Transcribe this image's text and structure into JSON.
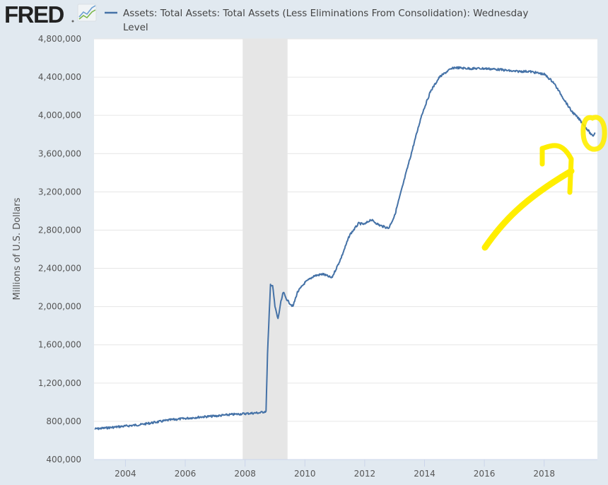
{
  "header": {
    "logo_text": "FRED",
    "logo_icon": "line-chart-icon",
    "legend_line1": "Assets: Total Assets: Total Assets (Less Eliminations From Consolidation): Wednesday",
    "legend_line2": "Level"
  },
  "colors": {
    "series": "#4572a7",
    "background": "#e1e9f0",
    "plot": "#ffffff",
    "recession": "#e6e6e6",
    "annotation": "#ffee00"
  },
  "chart_data": {
    "type": "line",
    "title": "Assets: Total Assets: Total Assets (Less Eliminations From Consolidation): Wednesday Level",
    "xlabel": "",
    "ylabel": "Millions of U.S. Dollars",
    "xlim": [
      2002.95,
      2019.78
    ],
    "ylim": [
      400000,
      4800000
    ],
    "grid": true,
    "x_ticks": [
      "2004",
      "2006",
      "2008",
      "2010",
      "2012",
      "2014",
      "2016",
      "2018"
    ],
    "y_ticks": [
      "400,000",
      "800,000",
      "1,200,000",
      "1,600,000",
      "2,000,000",
      "2,400,000",
      "2,800,000",
      "3,200,000",
      "3,600,000",
      "4,000,000",
      "4,400,000",
      "4,800,000"
    ],
    "recession_shading": [
      [
        2007.92,
        2009.42
      ]
    ],
    "series": [
      {
        "name": "Assets: Total Assets: Total Assets (Less Eliminations From Consolidation): Wednesday Level",
        "x": [
          2002.97,
          2003.5,
          2004.0,
          2004.5,
          2005.0,
          2005.5,
          2006.0,
          2006.5,
          2007.0,
          2007.5,
          2008.0,
          2008.5,
          2008.7,
          2008.75,
          2008.85,
          2008.92,
          2009.0,
          2009.1,
          2009.2,
          2009.28,
          2009.35,
          2009.45,
          2009.6,
          2009.75,
          2010.0,
          2010.3,
          2010.6,
          2010.9,
          2011.2,
          2011.5,
          2011.8,
          2012.0,
          2012.2,
          2012.5,
          2012.8,
          2013.0,
          2013.3,
          2013.6,
          2013.9,
          2014.2,
          2014.5,
          2014.8,
          2015.0,
          2015.5,
          2016.0,
          2016.5,
          2017.0,
          2017.5,
          2018.0,
          2018.3,
          2018.6,
          2018.9,
          2019.2,
          2019.5,
          2019.62,
          2019.7
        ],
        "values": [
          720000,
          735000,
          750000,
          765000,
          790000,
          815000,
          830000,
          845000,
          855000,
          870000,
          880000,
          890000,
          905000,
          1500000,
          2230000,
          2220000,
          2000000,
          1870000,
          2050000,
          2150000,
          2100000,
          2050000,
          2000000,
          2150000,
          2250000,
          2320000,
          2340000,
          2300000,
          2500000,
          2750000,
          2870000,
          2860000,
          2910000,
          2850000,
          2820000,
          2950000,
          3300000,
          3650000,
          4000000,
          4250000,
          4400000,
          4470000,
          4500000,
          4490000,
          4490000,
          4480000,
          4460000,
          4460000,
          4430000,
          4350000,
          4200000,
          4050000,
          3950000,
          3830000,
          3780000,
          3820000
        ]
      }
    ]
  }
}
